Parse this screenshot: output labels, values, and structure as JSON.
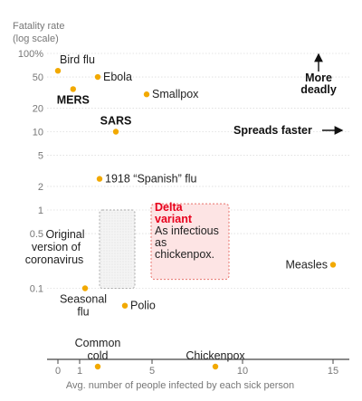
{
  "chart_data": {
    "type": "scatter",
    "ylabel_lines": [
      "Fatality rate",
      "(log scale)"
    ],
    "xlabel": "Avg. number of people infected by each sick person",
    "x_ticks": [
      0,
      1,
      5,
      10,
      15
    ],
    "y_ticks": [
      {
        "value": 100,
        "label": "100%"
      },
      {
        "value": 50,
        "label": "50"
      },
      {
        "value": 20,
        "label": "20"
      },
      {
        "value": 10,
        "label": "10"
      },
      {
        "value": 5,
        "label": "5"
      },
      {
        "value": 2,
        "label": "2"
      },
      {
        "value": 1,
        "label": "1"
      },
      {
        "value": 0.5,
        "label": "0.5"
      },
      {
        "value": 0.1,
        "label": "0.1"
      }
    ],
    "y_scale": "log",
    "point_color": "#f2a900",
    "points": [
      {
        "name": "Bird flu",
        "x": 0,
        "y": 60,
        "label_pos": "above"
      },
      {
        "name": "Ebola",
        "x": 2,
        "y": 50,
        "label_pos": "right"
      },
      {
        "name": "MERS",
        "x": 0.7,
        "y": 35,
        "label_pos": "below",
        "bold": true
      },
      {
        "name": "Smallpox",
        "x": 4.7,
        "y": 30,
        "label_pos": "right"
      },
      {
        "name": "SARS",
        "x": 3,
        "y": 10,
        "label_pos": "above",
        "bold": true
      },
      {
        "name": "1918 “Spanish” flu",
        "x": 2.1,
        "y": 2.5,
        "label_pos": "right"
      },
      {
        "name": "Measles",
        "x": 15,
        "y": 0.2,
        "label_pos": "left"
      },
      {
        "name": "Seasonal flu",
        "x": 1.3,
        "y": 0.1,
        "label_lines": [
          "Seasonal",
          "flu"
        ],
        "label_pos": "below"
      },
      {
        "name": "Polio",
        "x": 3.5,
        "y": 0.06,
        "label_pos": "right"
      },
      {
        "name": "Common cold",
        "x": 2,
        "y": 0.01,
        "label_lines": [
          "Common",
          "cold"
        ],
        "label_pos": "above"
      },
      {
        "name": "Chickenpox",
        "x": 8.5,
        "y": 0.01,
        "label_pos": "above"
      }
    ],
    "original_coronavirus": {
      "label_lines": [
        "Original",
        "version of",
        "coronavirus"
      ],
      "x_range": [
        2,
        4
      ],
      "y_range": [
        0.1,
        1
      ]
    },
    "delta_variant": {
      "title_lines": [
        "Delta",
        "variant"
      ],
      "body_lines": [
        "As infectious",
        "as",
        "chickenpox."
      ],
      "x_range": [
        5,
        9
      ],
      "y_range": [
        0.13,
        1.2
      ],
      "fill": "#fde4e4",
      "border": "#e8716a"
    },
    "annotations": {
      "more_deadly_lines": [
        "More",
        "deadly"
      ],
      "spreads_faster": "Spreads faster"
    }
  }
}
